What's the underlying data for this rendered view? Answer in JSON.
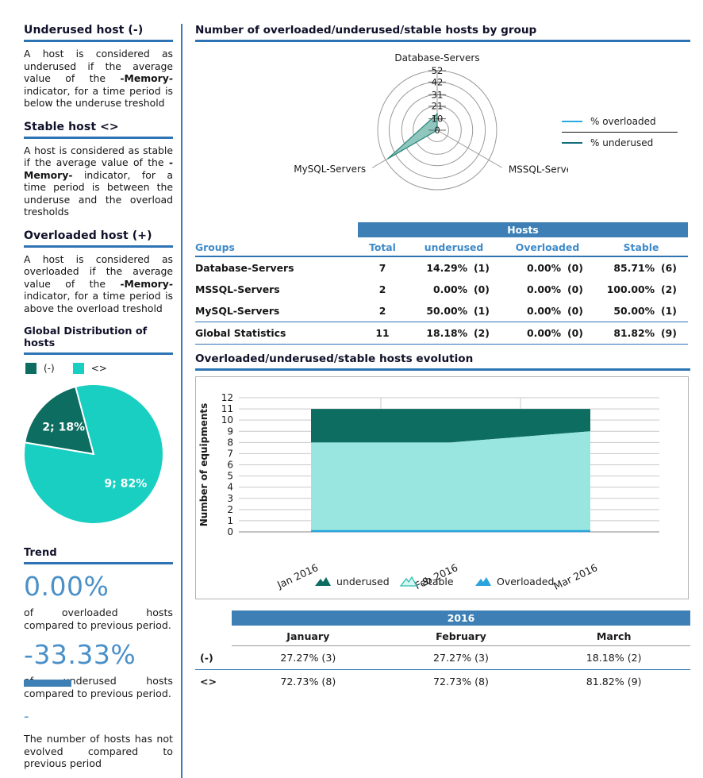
{
  "sidebar": {
    "definitions": [
      {
        "title": "Underused host (-)",
        "text_before": "A host is considered as underused if the average value of the ",
        "bold": "-Memory-",
        "text_after": " indicator, for a time period is below the underuse treshold"
      },
      {
        "title": "Stable host <>",
        "text_before": "A host is considered as stable if the average value of the ",
        "bold": "-Memory-",
        "text_after": " indicator, for a time period is between the underuse and the overload tresholds"
      },
      {
        "title": "Overloaded host (+)",
        "text_before": "A host is considered as overloaded if the average value of the ",
        "bold": "-Memory-",
        "text_after": " indicator, for a time period is above the overload treshold"
      }
    ],
    "distribution": {
      "title": "Global Distribution of hosts",
      "legend": [
        {
          "label": "(-)",
          "color": "#0d6d61"
        },
        {
          "label": "<>",
          "color": "#19cfc2"
        }
      ]
    },
    "trend": {
      "title": "Trend",
      "overloaded_value": "0.00%",
      "overloaded_text": "of overloaded hosts compared to previous period.",
      "underused_value": "-33.33%",
      "underused_text": "of underused hosts compared to previous period.",
      "hosts_value": "-",
      "hosts_text": "The number of hosts has not evolved compared to previous period"
    }
  },
  "main": {
    "radar_title": "Number of overloaded/underused/stable hosts by group",
    "radar_legend": [
      {
        "label": "% overloaded",
        "color": "#29abe2"
      },
      {
        "label": "% underused",
        "color": "#15707e"
      }
    ],
    "hosts_table": {
      "band": "Hosts",
      "columns": {
        "groups": "Groups",
        "total": "Total",
        "underused": "underused",
        "overloaded": "Overloaded",
        "stable": "Stable"
      },
      "rows": [
        [
          "Database-Servers",
          "7",
          "14.29%",
          "(1)",
          "0.00%",
          "(0)",
          "85.71%",
          "(6)"
        ],
        [
          "MSSQL-Servers",
          "2",
          "0.00%",
          "(0)",
          "0.00%",
          "(0)",
          "100.00%",
          "(2)"
        ],
        [
          "MySQL-Servers",
          "2",
          "50.00%",
          "(1)",
          "0.00%",
          "(0)",
          "50.00%",
          "(1)"
        ]
      ],
      "total_row": [
        "Global Statistics",
        "11",
        "18.18%",
        "(2)",
        "0.00%",
        "(0)",
        "81.82%",
        "(9)"
      ]
    },
    "evolution_title": "Overloaded/underused/stable hosts evolution",
    "months_table": {
      "band": "2016",
      "columns": [
        "January",
        "February",
        "March"
      ],
      "rows": [
        {
          "label": "(-)",
          "values": [
            "27.27% (3)",
            "27.27% (3)",
            "18.18% (2)"
          ]
        },
        {
          "label": "<>",
          "values": [
            "72.73% (8)",
            "72.73% (8)",
            "81.82% (9)"
          ]
        }
      ]
    }
  },
  "chart_data": [
    {
      "type": "radar",
      "title": "Number of overloaded/underused/stable hosts by group",
      "axes": [
        "Database-Servers",
        "MSSQL-Servers",
        "MySQL-Servers"
      ],
      "ring_ticks": [
        0,
        10,
        21,
        31,
        42,
        52
      ],
      "max": 52,
      "grid_color": "#999999",
      "series": [
        {
          "name": "% overloaded",
          "color": "#29abe2",
          "values": [
            0,
            0,
            0
          ]
        },
        {
          "name": "% underused",
          "color": "#2a8578",
          "fill": "#8fc7bf",
          "values": [
            14.29,
            0,
            50
          ]
        }
      ]
    },
    {
      "type": "pie",
      "title": "Global Distribution of hosts",
      "labels": [
        "(-)",
        "<>"
      ],
      "values": [
        2,
        9
      ],
      "percents": [
        18,
        82
      ],
      "colors": [
        "#0d6d61",
        "#19cfc2"
      ],
      "slice_labels": [
        "2; 18%",
        "9; 82%"
      ],
      "start_angle_deg": 105
    },
    {
      "type": "area",
      "title": "Overloaded/underused/stable hosts evolution",
      "x": [
        "Jan 2016",
        "Feb 2016",
        "Mar 2016"
      ],
      "ylabel": "Number of equipments",
      "ylim": [
        0,
        12
      ],
      "yticks": [
        0,
        1,
        2,
        3,
        4,
        5,
        6,
        7,
        8,
        9,
        10,
        11,
        12
      ],
      "series": [
        {
          "name": "underused",
          "color": "#0d6d61",
          "values": [
            3,
            3,
            2
          ]
        },
        {
          "name": "Stable",
          "color": "#98e6df",
          "values": [
            8,
            8,
            9
          ]
        },
        {
          "name": "Overloaded",
          "color": "#2aa4dc",
          "values": [
            0,
            0,
            0
          ]
        }
      ],
      "stack_total": [
        11,
        11,
        11
      ],
      "legend": [
        "underused",
        "Stable",
        "Overloaded"
      ]
    }
  ]
}
